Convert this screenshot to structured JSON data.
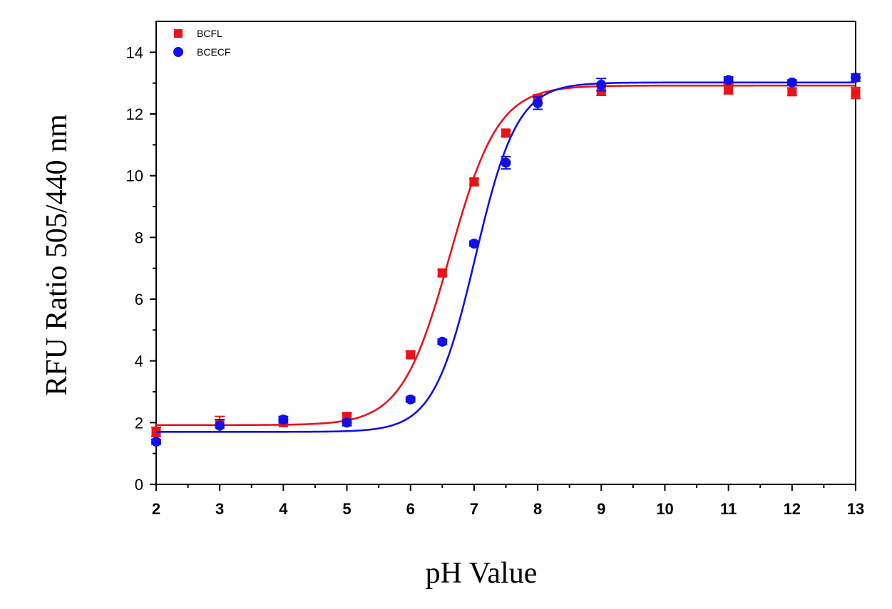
{
  "chart_data": {
    "type": "scatter",
    "title": "",
    "xlabel": "pH Value",
    "ylabel": "RFU Ratio 505/440 nm",
    "xlim": [
      2,
      13
    ],
    "ylim": [
      0,
      15
    ],
    "xticks": [
      2,
      3,
      4,
      5,
      6,
      7,
      8,
      9,
      10,
      11,
      12,
      13
    ],
    "yticks": [
      0,
      2,
      4,
      6,
      8,
      10,
      12,
      14
    ],
    "grid": false,
    "legend_position": "top-left",
    "series": [
      {
        "name": "BCFL",
        "color": "#e8141a",
        "marker": "square",
        "x": [
          2,
          3,
          4,
          5,
          6,
          6.5,
          7,
          7.5,
          8,
          9,
          11,
          12,
          13
        ],
        "y": [
          1.7,
          1.95,
          2.0,
          2.2,
          4.2,
          6.85,
          9.8,
          11.38,
          12.5,
          12.75,
          12.8,
          12.72,
          12.68
        ],
        "err": [
          0.15,
          0.25,
          0.08,
          0.1,
          0.1,
          0.1,
          0.1,
          0.1,
          0.1,
          0.15,
          0.15,
          0.12,
          0.18
        ],
        "fit": {
          "bottom": 1.92,
          "top": 12.92,
          "x0": 6.62,
          "slope": 0.38
        }
      },
      {
        "name": "BCECF",
        "color": "#1010e8",
        "marker": "circle",
        "x": [
          2,
          3,
          4,
          5,
          6,
          6.5,
          7,
          7.5,
          8,
          9,
          11,
          12,
          13
        ],
        "y": [
          1.38,
          1.9,
          2.1,
          2.0,
          2.75,
          4.62,
          7.8,
          10.42,
          12.35,
          12.95,
          13.1,
          13.02,
          13.18
        ],
        "err": [
          0.08,
          0.2,
          0.1,
          0.1,
          0.08,
          0.08,
          0.08,
          0.2,
          0.2,
          0.2,
          0.1,
          0.08,
          0.12
        ],
        "fit": {
          "bottom": 1.7,
          "top": 13.02,
          "x0": 7.02,
          "slope": 0.33
        }
      }
    ]
  }
}
